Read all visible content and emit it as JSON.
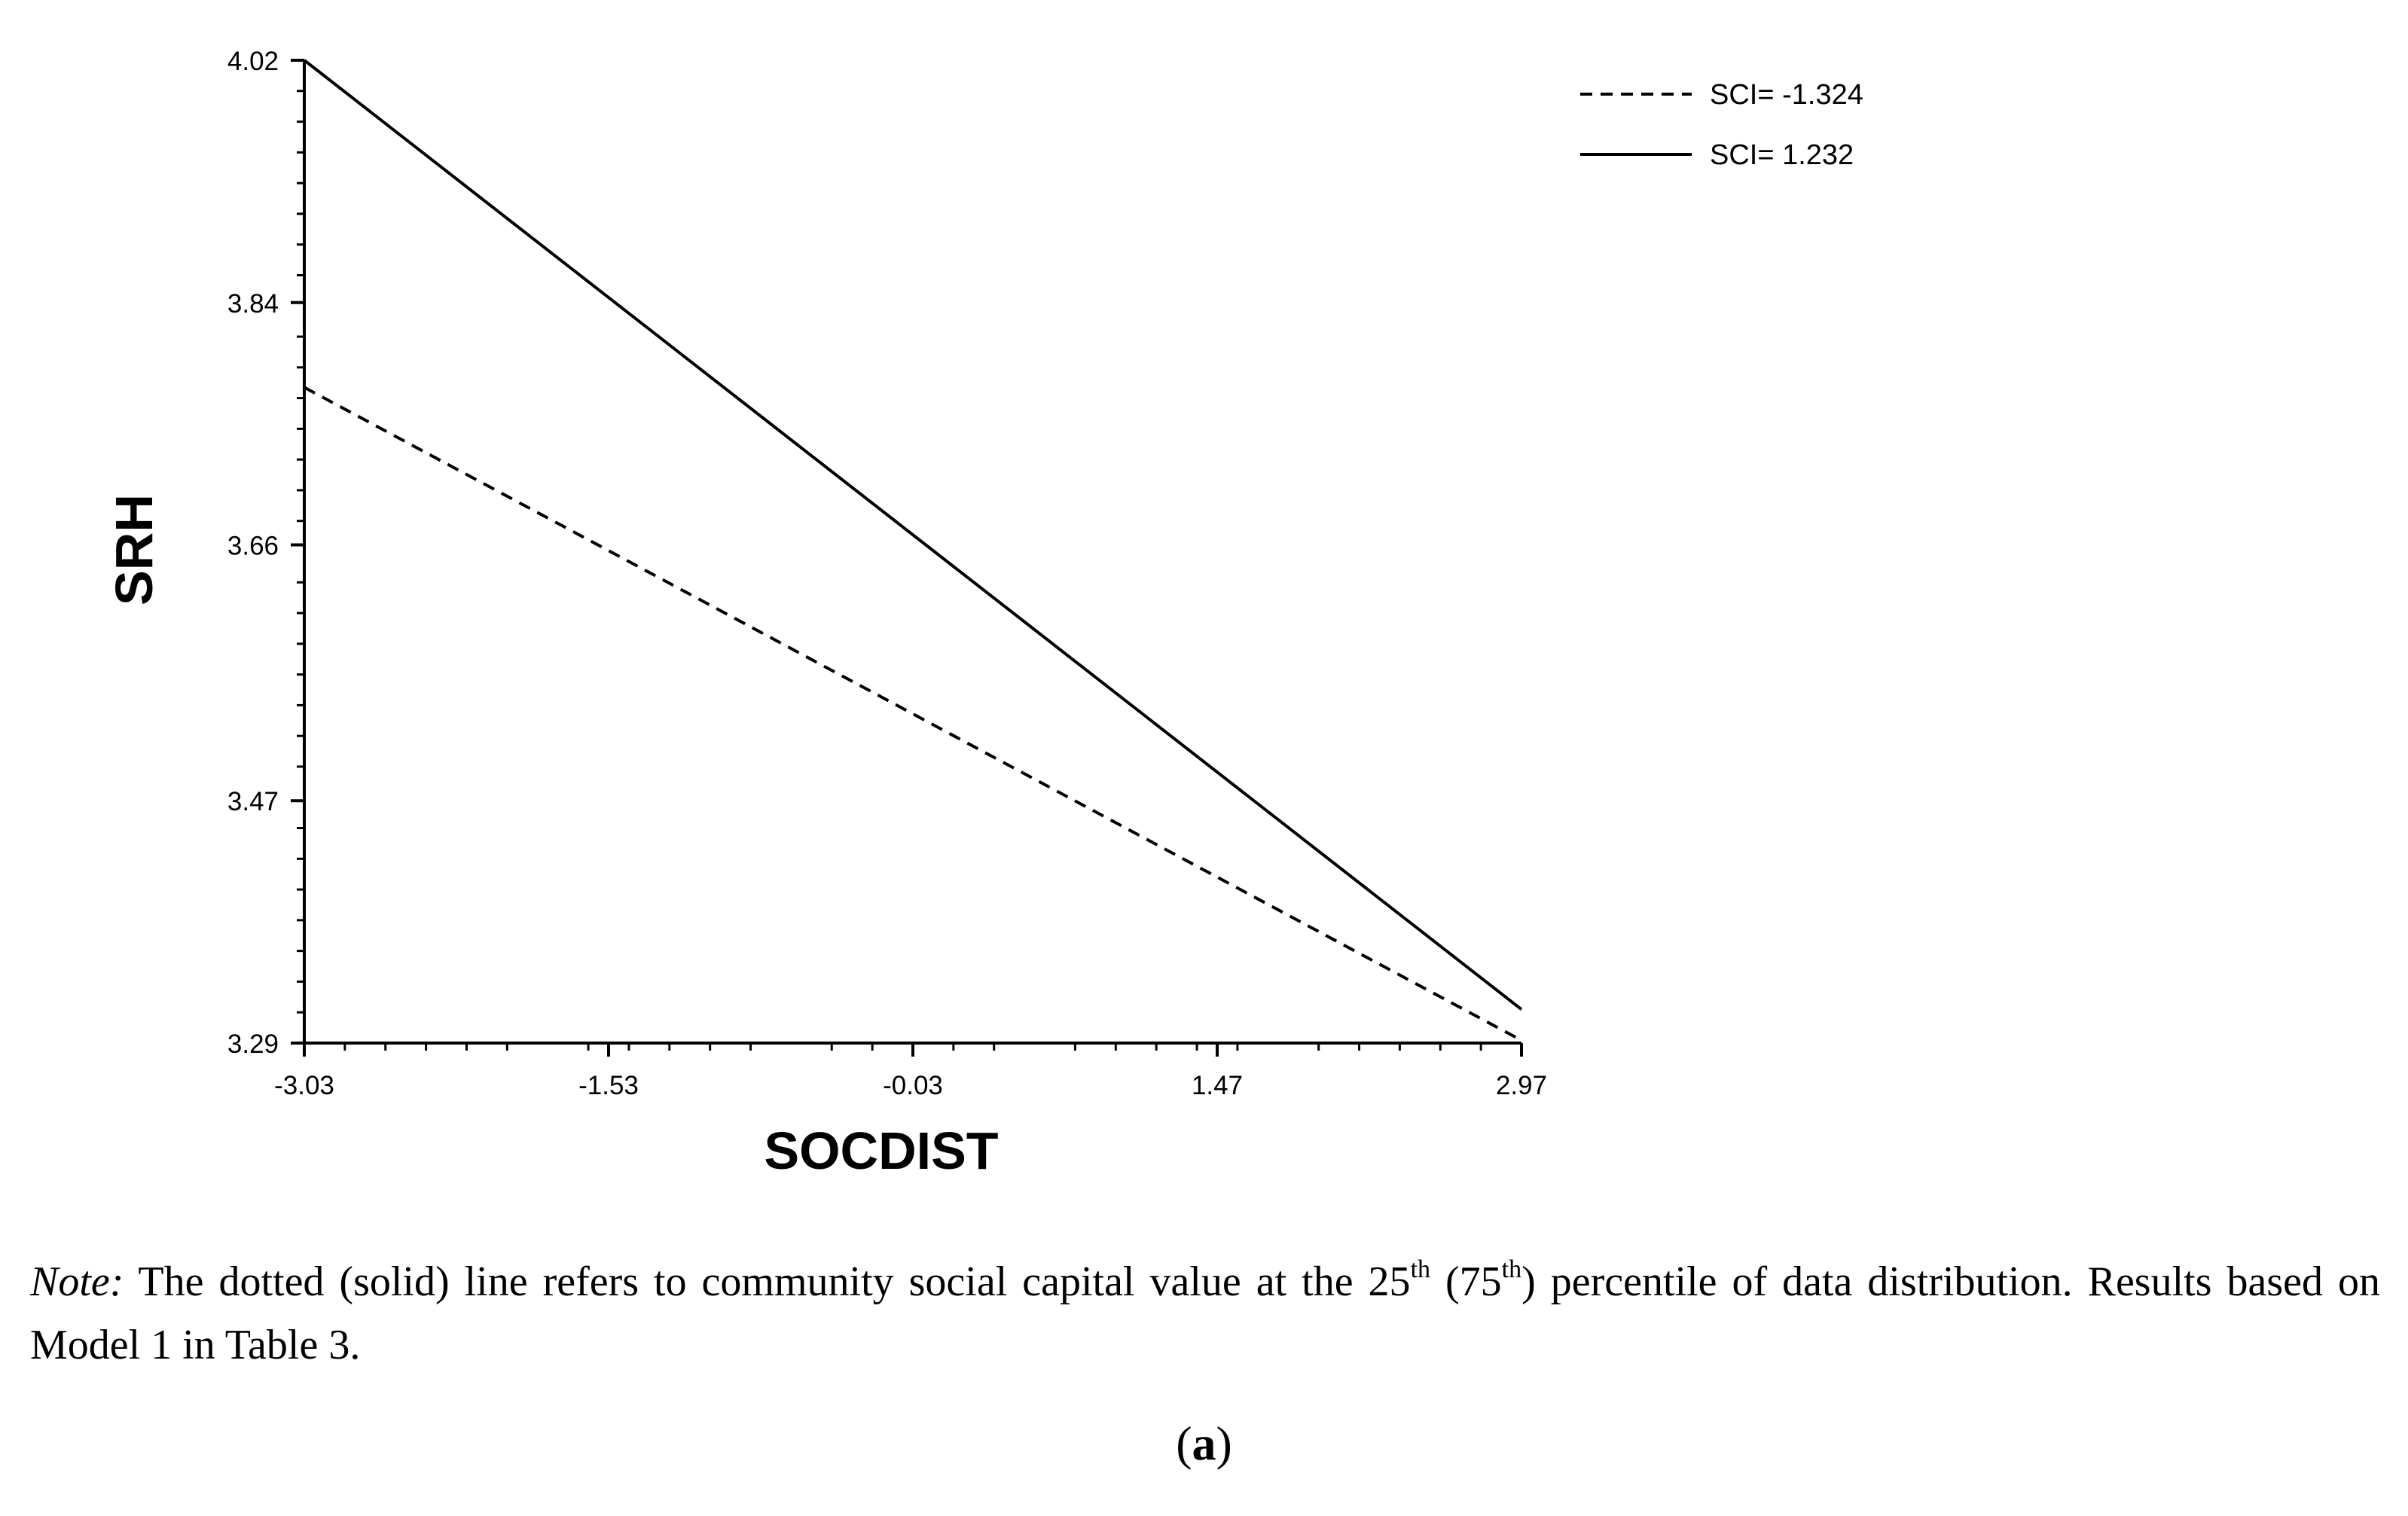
{
  "chart_data": {
    "type": "line",
    "xlabel": "SOCDIST",
    "ylabel": "SRH",
    "xlim": [
      -3.03,
      2.97
    ],
    "ylim": [
      3.29,
      4.02
    ],
    "x_ticks": [
      "-3.03",
      "-1.53",
      "-0.03",
      "1.47",
      "2.97"
    ],
    "y_ticks": [
      "4.02",
      "3.84",
      "3.66",
      "3.47",
      "3.29"
    ],
    "legend_position": "top-right",
    "grid": false,
    "series": [
      {
        "name": "SCI= -1.324",
        "style": "dashed",
        "color": "#000000",
        "x": [
          -3.03,
          2.97
        ],
        "y": [
          3.777,
          3.292
        ]
      },
      {
        "name": "SCI= 1.232",
        "style": "solid",
        "color": "#000000",
        "x": [
          -3.03,
          2.97
        ],
        "y": [
          4.02,
          3.315
        ]
      }
    ]
  },
  "note": {
    "prefix": "Note:",
    "part1": " The dotted (solid) line refers to community social capital value at the 25",
    "sup1": "th",
    "part2": " (75",
    "sup2": "th",
    "part3": ") percentile of data distribution. Results based on Model 1 in Table 3."
  },
  "caption": {
    "open": "(",
    "letter": "a",
    "close": ")"
  }
}
